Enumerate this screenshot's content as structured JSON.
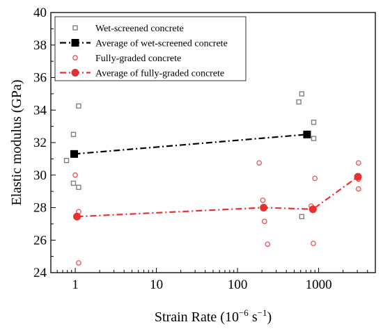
{
  "chart_data": {
    "type": "scatter",
    "xscale": "log",
    "xlim": [
      0.5,
      5000
    ],
    "ylim": [
      24,
      40
    ],
    "xticks": [
      1,
      10,
      100,
      1000
    ],
    "xtick_labels": [
      "1",
      "10",
      "100",
      "1000"
    ],
    "yticks": [
      24,
      26,
      28,
      30,
      32,
      34,
      36,
      38,
      40
    ],
    "ytick_labels": [
      "24",
      "26",
      "28",
      "30",
      "32",
      "34",
      "36",
      "38",
      "40"
    ],
    "xlabel": {
      "main": "Strain Rate (10",
      "sup": "−6",
      "mid": " s",
      "sup2": "−1",
      "end": ")"
    },
    "ylabel": "Elastic modulus (GPa)",
    "grid": false,
    "legend_position": "top-left",
    "series": [
      {
        "name": "Wet-screened concrete",
        "kind": "scatter",
        "marker": "square-open",
        "color": "#808080",
        "points": [
          [
            0.78,
            30.9
          ],
          [
            0.95,
            29.5
          ],
          [
            0.95,
            32.5
          ],
          [
            1.1,
            34.25
          ],
          [
            1.1,
            29.25
          ],
          [
            570,
            34.5
          ],
          [
            620,
            35.0
          ],
          [
            620,
            27.45
          ],
          [
            870,
            33.25
          ],
          [
            870,
            32.25
          ]
        ]
      },
      {
        "name": "Average of wet-screened concrete",
        "kind": "line",
        "marker": "square-filled",
        "color": "#000000",
        "line_style": "dash-dot",
        "points": [
          [
            0.97,
            31.3
          ],
          [
            720,
            32.5
          ]
        ]
      },
      {
        "name": "Fully-graded concrete",
        "kind": "scatter",
        "marker": "circle-open",
        "color": "#f05050",
        "points": [
          [
            1.0,
            30.0
          ],
          [
            1.1,
            27.75
          ],
          [
            1.1,
            24.6
          ],
          [
            185,
            30.75
          ],
          [
            205,
            28.45
          ],
          [
            215,
            27.15
          ],
          [
            235,
            25.75
          ],
          [
            810,
            28.1
          ],
          [
            860,
            25.8
          ],
          [
            900,
            29.8
          ],
          [
            3100,
            30.75
          ],
          [
            3100,
            29.15
          ],
          [
            3100,
            29.75
          ]
        ]
      },
      {
        "name": "Average of fully-graded concrete",
        "kind": "line",
        "marker": "circle-filled",
        "color": "#e83030",
        "line_style": "dash-dot",
        "points": [
          [
            1.05,
            27.45
          ],
          [
            210,
            28.0
          ],
          [
            850,
            27.9
          ],
          [
            3050,
            29.9
          ]
        ]
      }
    ]
  }
}
